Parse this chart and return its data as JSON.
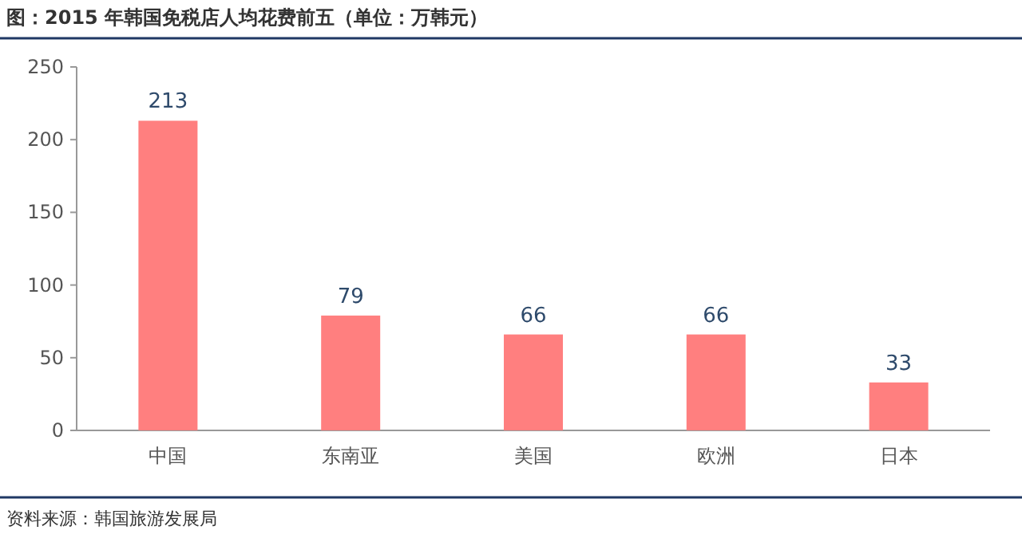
{
  "chart_data": {
    "type": "bar",
    "title": "图：2015 年韩国免税店人均花费前五（单位：万韩元）",
    "categories": [
      "中国",
      "东南亚",
      "美国",
      "欧洲",
      "日本"
    ],
    "values": [
      213,
      79,
      66,
      66,
      33
    ],
    "color": "#ff7f7f",
    "ylim": [
      0,
      250
    ],
    "yticks": [
      0,
      50,
      100,
      150,
      200,
      250
    ],
    "data_labels": true,
    "annotations": [
      "资料来源：韩国旅游发展局"
    ]
  }
}
